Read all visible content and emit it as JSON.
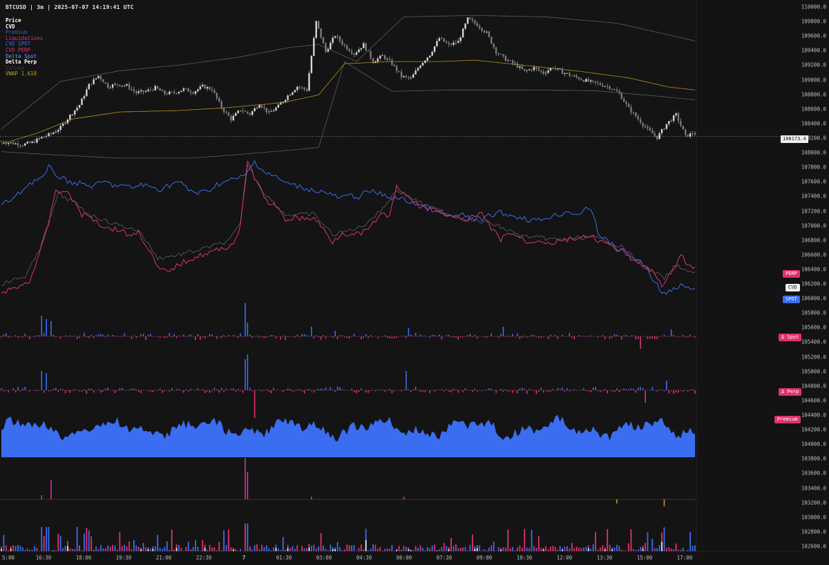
{
  "header": {
    "symbol": "BTCUSD",
    "timeframe": "3m",
    "timestamp": "2025-07-07 14:19:41 UTC"
  },
  "legend": [
    {
      "label": "Price",
      "color": "#ffffff",
      "bold": true
    },
    {
      "label": "CVD",
      "color": "#ffffff",
      "bold": true
    },
    {
      "label": "Premium",
      "color": "#2f5bd6",
      "bold": false
    },
    {
      "label": "Liquidations",
      "color": "#d4339c",
      "bold": false
    },
    {
      "label": "CVD SPOT",
      "color": "#3b6df0",
      "bold": false
    },
    {
      "label": "CVD PERP",
      "color": "#e0336a",
      "bold": false
    },
    {
      "label": "Delta Spot",
      "color": "#5aa0ff",
      "bold": false
    },
    {
      "label": "Delta Perp",
      "color": "#ffffff",
      "bold": true
    },
    {
      "label": "Volume",
      "color": "#3a3a3a",
      "bold": false
    },
    {
      "label": "VWAP 1.618",
      "color": "#c8a020",
      "bold": false
    }
  ],
  "price_tag": "108173.4",
  "badges": {
    "perp": "PERP",
    "cvd": "CVD",
    "spot": "SPOT",
    "delta_spot": "Δ Spot",
    "delta_perp": "Δ Perp",
    "premium": "Premium"
  },
  "colors": {
    "background": "#131313",
    "price": "#a8a8a8",
    "cvd_spot": "#3b6df0",
    "cvd_perp": "#e0336a",
    "cvd": "#5a5a5a",
    "vwap": "#b8921c",
    "band": "#5c5c5c",
    "premium": "#3b6df0",
    "liquidation": "#d4339c",
    "volume_sell": "#e8e8e8"
  },
  "y_axis": [
    "110000.0",
    "109800.0",
    "109600.0",
    "109400.0",
    "109200.0",
    "109000.0",
    "108800.0",
    "108600.0",
    "108400.0",
    "108200.0",
    "108000.0",
    "107800.0",
    "107600.0",
    "107400.0",
    "107200.0",
    "107000.0",
    "106800.0",
    "106600.0",
    "106400.0",
    "106200.0",
    "106000.0",
    "105800.0",
    "105600.0",
    "105400.0",
    "105200.0",
    "105000.0",
    "104800.0",
    "104600.0",
    "104400.0",
    "104200.0",
    "104000.0",
    "103800.0",
    "103600.0",
    "103400.0",
    "103200.0",
    "103000.0",
    "102800.0",
    "102600.0"
  ],
  "x_axis": [
    "5:00",
    "16:30",
    "18:00",
    "19:30",
    "21:00",
    "22:30",
    "7",
    "01:30",
    "03:00",
    "04:30",
    "06:00",
    "07:30",
    "09:00",
    "10:30",
    "12:00",
    "13:30",
    "15:00",
    "17:00"
  ],
  "chart_data": {
    "type": "line",
    "y_range": [
      102400,
      110000
    ],
    "price_path": [
      [
        0,
        108100
      ],
      [
        5,
        108080
      ],
      [
        9,
        108060
      ],
      [
        13,
        108090
      ],
      [
        17,
        108160
      ],
      [
        21,
        108210
      ],
      [
        25,
        108300
      ],
      [
        29,
        108470
      ],
      [
        33,
        108620
      ],
      [
        37,
        108900
      ],
      [
        41,
        109030
      ],
      [
        45,
        108880
      ],
      [
        49,
        108910
      ],
      [
        53,
        108890
      ],
      [
        57,
        108790
      ],
      [
        61,
        108810
      ],
      [
        65,
        108860
      ],
      [
        69,
        108780
      ],
      [
        73,
        108790
      ],
      [
        77,
        108840
      ],
      [
        81,
        108800
      ],
      [
        85,
        108880
      ],
      [
        89,
        108840
      ],
      [
        93,
        108580
      ],
      [
        97,
        108420
      ],
      [
        101,
        108550
      ],
      [
        105,
        108490
      ],
      [
        109,
        108640
      ],
      [
        113,
        108500
      ],
      [
        117,
        108600
      ],
      [
        121,
        108750
      ],
      [
        125,
        108880
      ],
      [
        129,
        108830
      ],
      [
        133,
        109790
      ],
      [
        137,
        109370
      ],
      [
        141,
        109600
      ],
      [
        145,
        109450
      ],
      [
        149,
        109340
      ],
      [
        153,
        109470
      ],
      [
        157,
        109230
      ],
      [
        161,
        109310
      ],
      [
        165,
        109200
      ],
      [
        169,
        109020
      ],
      [
        173,
        108990
      ],
      [
        177,
        109190
      ],
      [
        181,
        109330
      ],
      [
        185,
        109560
      ],
      [
        189,
        109460
      ],
      [
        193,
        109510
      ],
      [
        197,
        109830
      ],
      [
        201,
        109750
      ],
      [
        205,
        109630
      ],
      [
        209,
        109370
      ],
      [
        213,
        109260
      ],
      [
        217,
        109190
      ],
      [
        221,
        109090
      ],
      [
        225,
        109140
      ],
      [
        229,
        109070
      ],
      [
        233,
        109150
      ],
      [
        237,
        109080
      ],
      [
        241,
        109030
      ],
      [
        245,
        108980
      ],
      [
        249,
        108940
      ],
      [
        253,
        108910
      ],
      [
        257,
        108870
      ],
      [
        261,
        108780
      ],
      [
        265,
        108570
      ],
      [
        269,
        108420
      ],
      [
        273,
        108270
      ],
      [
        277,
        108160
      ],
      [
        281,
        108350
      ],
      [
        285,
        108480
      ],
      [
        289,
        108180
      ],
      [
        293,
        108230
      ]
    ],
    "vwap_path": [
      [
        0,
        108070
      ],
      [
        15,
        108220
      ],
      [
        30,
        108420
      ],
      [
        50,
        108520
      ],
      [
        75,
        108540
      ],
      [
        95,
        108580
      ],
      [
        112,
        108630
      ],
      [
        120,
        108660
      ],
      [
        134,
        108760
      ],
      [
        145,
        109200
      ],
      [
        165,
        109230
      ],
      [
        185,
        109230
      ],
      [
        200,
        109250
      ],
      [
        220,
        109180
      ],
      [
        245,
        109090
      ],
      [
        265,
        109000
      ],
      [
        282,
        108870
      ],
      [
        293,
        108830
      ]
    ],
    "upper_band": [
      [
        0,
        108280
      ],
      [
        25,
        108950
      ],
      [
        50,
        109100
      ],
      [
        75,
        109180
      ],
      [
        100,
        109290
      ],
      [
        122,
        109430
      ],
      [
        134,
        109470
      ],
      [
        150,
        109230
      ],
      [
        170,
        109860
      ],
      [
        200,
        109880
      ],
      [
        230,
        109860
      ],
      [
        260,
        109770
      ],
      [
        280,
        109620
      ],
      [
        293,
        109520
      ]
    ],
    "lower_band": [
      [
        0,
        107960
      ],
      [
        20,
        107920
      ],
      [
        50,
        107870
      ],
      [
        80,
        107870
      ],
      [
        100,
        107920
      ],
      [
        125,
        107990
      ],
      [
        134,
        108020
      ],
      [
        145,
        109230
      ],
      [
        165,
        108810
      ],
      [
        190,
        108830
      ],
      [
        220,
        108830
      ],
      [
        250,
        108820
      ],
      [
        275,
        108750
      ],
      [
        293,
        108690
      ]
    ],
    "cvd_spot_path": [
      [
        0,
        107210
      ],
      [
        6,
        107320
      ],
      [
        10,
        107460
      ],
      [
        14,
        107560
      ],
      [
        18,
        107600
      ],
      [
        20,
        107740
      ],
      [
        23,
        107640
      ],
      [
        27,
        107560
      ],
      [
        31,
        107520
      ],
      [
        35,
        107500
      ],
      [
        39,
        107470
      ],
      [
        43,
        107540
      ],
      [
        47,
        107490
      ],
      [
        51,
        107480
      ],
      [
        55,
        107450
      ],
      [
        59,
        107500
      ],
      [
        63,
        107460
      ],
      [
        67,
        107430
      ],
      [
        71,
        107490
      ],
      [
        75,
        107540
      ],
      [
        79,
        107420
      ],
      [
        83,
        107380
      ],
      [
        87,
        107400
      ],
      [
        91,
        107500
      ],
      [
        95,
        107540
      ],
      [
        99,
        107580
      ],
      [
        103,
        107620
      ],
      [
        107,
        107820
      ],
      [
        111,
        107680
      ],
      [
        115,
        107620
      ],
      [
        119,
        107540
      ],
      [
        123,
        107490
      ],
      [
        127,
        107460
      ],
      [
        131,
        107420
      ],
      [
        135,
        107400
      ],
      [
        139,
        107360
      ],
      [
        143,
        107300
      ],
      [
        147,
        107340
      ],
      [
        151,
        107330
      ],
      [
        155,
        107400
      ],
      [
        159,
        107380
      ],
      [
        163,
        107320
      ],
      [
        167,
        107310
      ],
      [
        171,
        107270
      ],
      [
        175,
        107230
      ],
      [
        179,
        107180
      ],
      [
        183,
        107120
      ],
      [
        187,
        107070
      ],
      [
        191,
        107050
      ],
      [
        195,
        107060
      ],
      [
        199,
        107020
      ],
      [
        203,
        107000
      ],
      [
        207,
        107070
      ],
      [
        211,
        107100
      ],
      [
        215,
        107060
      ],
      [
        219,
        107040
      ],
      [
        223,
        107000
      ],
      [
        227,
        106990
      ],
      [
        231,
        107040
      ],
      [
        235,
        107070
      ],
      [
        239,
        107120
      ],
      [
        243,
        107080
      ],
      [
        247,
        107140
      ],
      [
        250,
        107100
      ],
      [
        252,
        106820
      ],
      [
        256,
        106700
      ],
      [
        260,
        106600
      ],
      [
        264,
        106520
      ],
      [
        268,
        106440
      ],
      [
        272,
        106360
      ],
      [
        276,
        106120
      ],
      [
        280,
        105960
      ],
      [
        284,
        106010
      ],
      [
        288,
        106080
      ],
      [
        292,
        106000
      ]
    ],
    "cvd_perp_path": [
      [
        0,
        105990
      ],
      [
        4,
        106010
      ],
      [
        8,
        106070
      ],
      [
        12,
        106140
      ],
      [
        16,
        106530
      ],
      [
        20,
        106950
      ],
      [
        23,
        107420
      ],
      [
        27,
        107400
      ],
      [
        30,
        107300
      ],
      [
        34,
        107070
      ],
      [
        38,
        107040
      ],
      [
        42,
        106930
      ],
      [
        46,
        106880
      ],
      [
        50,
        106860
      ],
      [
        54,
        106780
      ],
      [
        58,
        106830
      ],
      [
        62,
        106600
      ],
      [
        66,
        106320
      ],
      [
        70,
        106260
      ],
      [
        74,
        106350
      ],
      [
        78,
        106420
      ],
      [
        82,
        106480
      ],
      [
        86,
        106520
      ],
      [
        90,
        106560
      ],
      [
        94,
        106600
      ],
      [
        98,
        106670
      ],
      [
        101,
        106900
      ],
      [
        104,
        107840
      ],
      [
        108,
        107520
      ],
      [
        112,
        107270
      ],
      [
        116,
        107180
      ],
      [
        120,
        107000
      ],
      [
        124,
        107040
      ],
      [
        128,
        107010
      ],
      [
        132,
        107030
      ],
      [
        136,
        106870
      ],
      [
        140,
        106690
      ],
      [
        144,
        106830
      ],
      [
        148,
        106780
      ],
      [
        152,
        106810
      ],
      [
        156,
        106890
      ],
      [
        160,
        107090
      ],
      [
        164,
        107040
      ],
      [
        167,
        107460
      ],
      [
        171,
        107340
      ],
      [
        175,
        107230
      ],
      [
        179,
        107170
      ],
      [
        183,
        107150
      ],
      [
        187,
        107100
      ],
      [
        191,
        107020
      ],
      [
        195,
        107000
      ],
      [
        199,
        107030
      ],
      [
        203,
        107080
      ],
      [
        207,
        106870
      ],
      [
        211,
        106730
      ],
      [
        215,
        106820
      ],
      [
        219,
        106750
      ],
      [
        223,
        106670
      ],
      [
        227,
        106730
      ],
      [
        231,
        106670
      ],
      [
        235,
        106690
      ],
      [
        239,
        106720
      ],
      [
        243,
        106740
      ],
      [
        247,
        106750
      ],
      [
        251,
        106730
      ],
      [
        255,
        106670
      ],
      [
        259,
        106600
      ],
      [
        263,
        106550
      ],
      [
        267,
        106410
      ],
      [
        271,
        106370
      ],
      [
        275,
        106280
      ],
      [
        279,
        106050
      ],
      [
        283,
        106260
      ],
      [
        287,
        106500
      ],
      [
        291,
        106330
      ]
    ],
    "cvd_path": [
      [
        0,
        106100
      ],
      [
        10,
        106200
      ],
      [
        16,
        106560
      ],
      [
        20,
        106960
      ],
      [
        24,
        107360
      ],
      [
        30,
        107260
      ],
      [
        38,
        107060
      ],
      [
        48,
        106940
      ],
      [
        58,
        106850
      ],
      [
        62,
        106660
      ],
      [
        66,
        106460
      ],
      [
        74,
        106500
      ],
      [
        84,
        106580
      ],
      [
        96,
        106700
      ],
      [
        101,
        106940
      ],
      [
        104,
        107780
      ],
      [
        110,
        107420
      ],
      [
        120,
        107070
      ],
      [
        132,
        107080
      ],
      [
        140,
        106790
      ],
      [
        152,
        106900
      ],
      [
        160,
        107120
      ],
      [
        167,
        107420
      ],
      [
        180,
        107190
      ],
      [
        195,
        107010
      ],
      [
        207,
        106950
      ],
      [
        220,
        106770
      ],
      [
        235,
        106720
      ],
      [
        250,
        106760
      ],
      [
        262,
        106620
      ],
      [
        272,
        106330
      ],
      [
        280,
        106180
      ],
      [
        286,
        106350
      ],
      [
        292,
        106250
      ]
    ]
  }
}
